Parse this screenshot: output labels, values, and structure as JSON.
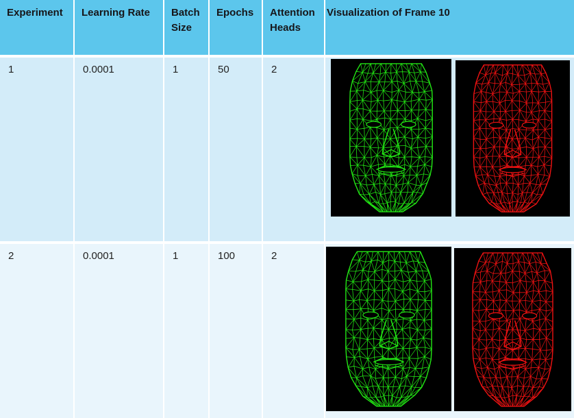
{
  "table": {
    "headers": [
      "Experiment",
      "Learning Rate",
      "Batch\nSize",
      "Epochs",
      "Attention\nHeads",
      "Visualization of Frame 10"
    ],
    "rows": [
      {
        "experiment": "1",
        "learning_rate": "0.0001",
        "batch_size": "1",
        "epochs": "50",
        "attention_heads": "2"
      },
      {
        "experiment": "2",
        "learning_rate": "0.0001",
        "batch_size": "1",
        "epochs": "100",
        "attention_heads": "2"
      }
    ]
  },
  "visualization": {
    "colors": {
      "ground_truth": "#22e614",
      "prediction": "#ee1212",
      "background": "#000000"
    },
    "icons": [
      "green-face-mesh",
      "red-face-mesh"
    ]
  }
}
